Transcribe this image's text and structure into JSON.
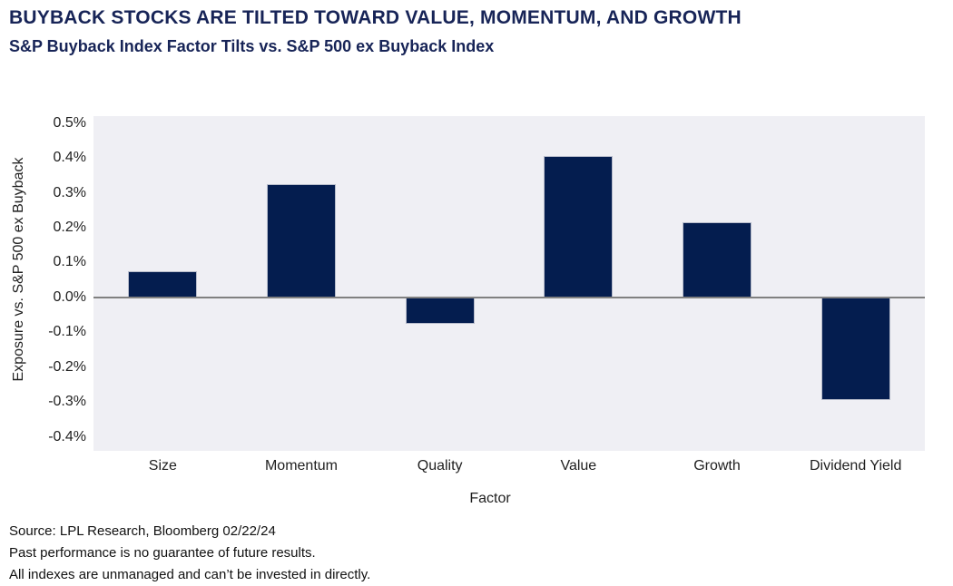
{
  "header": {
    "title": "BUYBACK STOCKS ARE TILTED TOWARD VALUE, MOMENTUM, AND GROWTH",
    "subtitle": "S&P Buyback Index Factor Tilts vs. S&P 500 ex Buyback Index"
  },
  "chart_data": {
    "type": "bar",
    "categories": [
      "Size",
      "Momentum",
      "Quality",
      "Value",
      "Growth",
      "Dividend Yield"
    ],
    "values": [
      0.075,
      0.325,
      -0.075,
      0.405,
      0.215,
      -0.295
    ],
    "value_unit": "%",
    "title": "",
    "xlabel": "Factor",
    "ylabel": "Exposure vs. S&P 500 ex Buyback",
    "ylim": [
      -0.44,
      0.52
    ],
    "yticks": [
      0.5,
      0.4,
      0.3,
      0.2,
      0.1,
      0.0,
      -0.1,
      -0.2,
      -0.3,
      -0.4
    ],
    "ytick_labels": [
      "0.5%",
      "0.4%",
      "0.3%",
      "0.2%",
      "0.1%",
      "0.0%",
      "-0.1%",
      "-0.2%",
      "-0.3%",
      "-0.4%"
    ],
    "grid": false,
    "legend": "none",
    "zero_baseline": true,
    "colors": {
      "bar": "#041d4f",
      "bar_border": "#b7bccb",
      "plot_bg": "#efeff4",
      "zero_line": "#808080",
      "title_text": "#172457"
    }
  },
  "footer": {
    "lines": [
      "Source: LPL Research, Bloomberg 02/22/24",
      "Past performance is no guarantee of future results.",
      "All indexes are unmanaged and can’t be invested in directly."
    ]
  }
}
